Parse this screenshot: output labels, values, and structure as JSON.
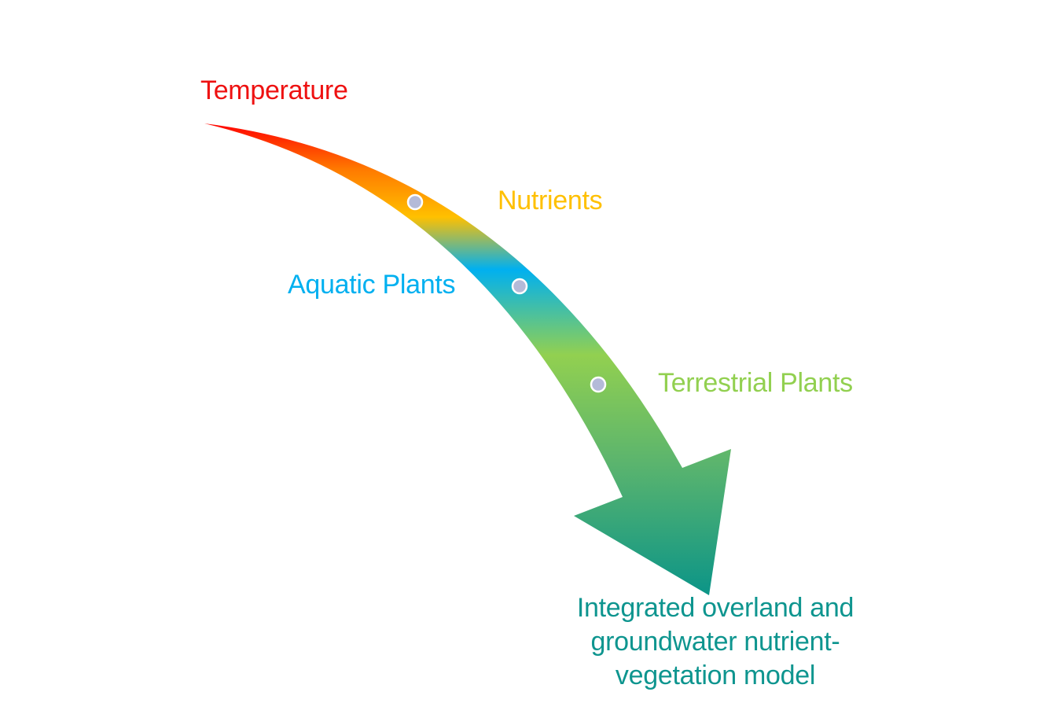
{
  "colors": {
    "temperature": "#ee1111",
    "nutrients": "#ffc000",
    "aquatic_plants": "#00b0f0",
    "terrestrial_plants": "#92d050",
    "model": "#0e958f",
    "marker_fill": "#b4bad8",
    "arrow_gradient": [
      "#ff0000",
      "#ff7a00",
      "#ffc000",
      "#00b0f0",
      "#92d050",
      "#5ab46e",
      "#0a9488"
    ]
  },
  "labels": {
    "temperature": "Temperature",
    "nutrients": "Nutrients",
    "aquatic_plants": "Aquatic Plants",
    "terrestrial_plants": "Terrestrial Plants",
    "model_line1": "Integrated overland and",
    "model_line2": "groundwater nutrient-",
    "model_line3": "vegetation model"
  },
  "markers": [
    "nutrients-marker",
    "aquatic-plants-marker",
    "terrestrial-plants-marker"
  ]
}
